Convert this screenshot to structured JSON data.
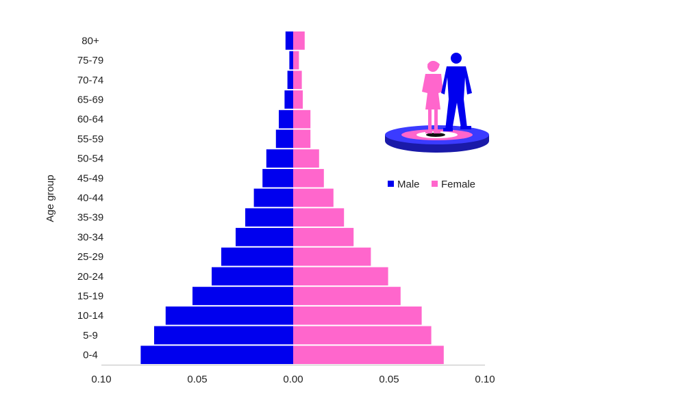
{
  "colors": {
    "male": "#0000ee",
    "female": "#ff66cc",
    "axis": "#bfbfbf"
  },
  "chart_data": {
    "type": "bar",
    "orientation": "horizontal",
    "layout": "population-pyramid",
    "ylabel": "Age group",
    "categories": [
      "80+",
      "75-79",
      "70-74",
      "65-69",
      "60-64",
      "55-59",
      "50-54",
      "45-49",
      "40-44",
      "35-39",
      "30-34",
      "25-29",
      "20-24",
      "15-19",
      "10-14",
      "5-9",
      "0-4"
    ],
    "x_ticks": [
      "0.10",
      "0.05",
      "0.00",
      "0.05",
      "0.10"
    ],
    "xlim": [
      -0.1,
      0.1
    ],
    "grid": false,
    "legend_position": "right",
    "series": [
      {
        "name": "Male",
        "color": "#0000ee",
        "side": "left",
        "values": [
          0.004,
          0.002,
          0.003,
          0.0045,
          0.0075,
          0.009,
          0.014,
          0.016,
          0.0205,
          0.025,
          0.03,
          0.0375,
          0.0425,
          0.0525,
          0.0665,
          0.0725,
          0.0795
        ]
      },
      {
        "name": "Female",
        "color": "#ff66cc",
        "side": "right",
        "values": [
          0.006,
          0.003,
          0.0045,
          0.005,
          0.009,
          0.009,
          0.0135,
          0.016,
          0.021,
          0.0265,
          0.0315,
          0.0405,
          0.0495,
          0.056,
          0.067,
          0.072,
          0.0785
        ]
      }
    ]
  }
}
